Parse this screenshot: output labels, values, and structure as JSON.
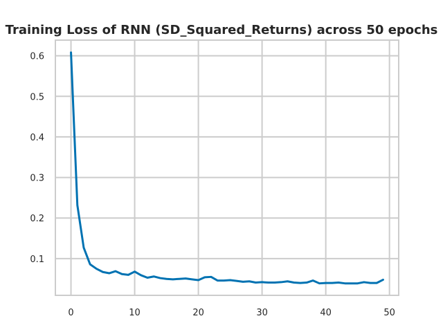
{
  "chart_data": {
    "type": "line",
    "title": "Training Loss of RNN (SD_Squared_Returns) across 50 epochs",
    "xlabel": "",
    "ylabel": "",
    "xlim": [
      -2.45,
      51.45
    ],
    "ylim": [
      0.0095,
      0.6385
    ],
    "xticks": [
      0,
      10,
      20,
      30,
      40,
      50
    ],
    "yticks": [
      0.1,
      0.2,
      0.3,
      0.4,
      0.5,
      0.6
    ],
    "xtick_labels": [
      "0",
      "10",
      "20",
      "30",
      "40",
      "50"
    ],
    "ytick_labels": [
      "0.1",
      "0.2",
      "0.3",
      "0.4",
      "0.5",
      "0.6"
    ],
    "grid": true,
    "legend": "none",
    "line_color": "#0072b2",
    "grid_color": "#cccccc",
    "series": [
      {
        "x": [
          0,
          1,
          2,
          3,
          4,
          5,
          6,
          7,
          8,
          9,
          10,
          11,
          12,
          13,
          14,
          15,
          16,
          17,
          18,
          19,
          20,
          21,
          22,
          23,
          24,
          25,
          26,
          27,
          28,
          29,
          30,
          31,
          32,
          33,
          34,
          35,
          36,
          37,
          38,
          39,
          40,
          41,
          42,
          43,
          44,
          45,
          46,
          47,
          48,
          49
        ],
        "values": [
          0.608,
          0.232,
          0.127,
          0.086,
          0.075,
          0.067,
          0.064,
          0.069,
          0.062,
          0.06,
          0.068,
          0.059,
          0.053,
          0.056,
          0.052,
          0.05,
          0.049,
          0.05,
          0.051,
          0.049,
          0.047,
          0.054,
          0.055,
          0.046,
          0.046,
          0.047,
          0.045,
          0.043,
          0.044,
          0.041,
          0.042,
          0.041,
          0.041,
          0.042,
          0.044,
          0.041,
          0.04,
          0.041,
          0.046,
          0.039,
          0.04,
          0.04,
          0.041,
          0.039,
          0.039,
          0.039,
          0.042,
          0.04,
          0.04,
          0.048
        ]
      }
    ]
  }
}
